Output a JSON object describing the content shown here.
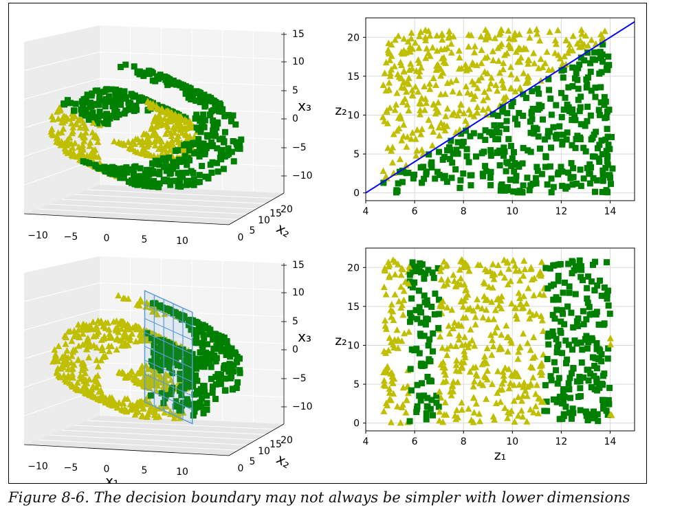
{
  "caption": "Figure 8-6. The decision boundary may not always be simpler with lower dimensions",
  "colors": {
    "square_class": "#008000",
    "triangle_class": "#bfbf00",
    "boundary_line": "#0000ff",
    "plane": "#5b9bd5"
  },
  "chart_data": [
    {
      "type": "scatter",
      "kind": "3d",
      "position": "top-left",
      "markers": [
        "square",
        "triangle"
      ],
      "xticks": [
        "-10",
        "-5",
        "0",
        "5",
        "10"
      ],
      "yticks": [
        "0",
        "5",
        "10",
        "15",
        "20"
      ],
      "zticks": [
        "-10",
        "-5",
        "0",
        "5",
        "10",
        "15"
      ],
      "xlabel": "",
      "ylabel": "x₂",
      "zlabel": "x₃",
      "xlim": [
        -11,
        14
      ],
      "ylim": [
        0,
        21
      ],
      "zlim": [
        -12,
        15
      ],
      "decision_boundary": "none"
    },
    {
      "type": "scatter",
      "position": "top-right",
      "xticks": [
        "4",
        "6",
        "8",
        "10",
        "12",
        "14"
      ],
      "yticks": [
        "0",
        "5",
        "10",
        "15",
        "20"
      ],
      "xlim": [
        4,
        15
      ],
      "ylim": [
        -1,
        22.5
      ],
      "xlabel": "",
      "ylabel": "z₂",
      "grid": true,
      "boundary_line": {
        "x": [
          4,
          15
        ],
        "y": [
          0,
          22
        ]
      },
      "classes": "triangles above line, squares below"
    },
    {
      "type": "scatter",
      "kind": "3d",
      "position": "bottom-left",
      "xticks": [
        "-10",
        "-5",
        "0",
        "5",
        "10"
      ],
      "yticks": [
        "0",
        "5",
        "10",
        "15",
        "20"
      ],
      "zticks": [
        "-10",
        "-5",
        "0",
        "5",
        "10",
        "15"
      ],
      "xlabel": "x₁",
      "ylabel": "x₂",
      "zlabel": "x₃",
      "decision_boundary": "plane at x1 = 5"
    },
    {
      "type": "scatter",
      "position": "bottom-right",
      "xticks": [
        "4",
        "6",
        "8",
        "10",
        "12",
        "14"
      ],
      "yticks": [
        "0",
        "5",
        "10",
        "15",
        "20"
      ],
      "xlim": [
        4,
        15
      ],
      "ylim": [
        -1,
        22.5
      ],
      "xlabel": "z₁",
      "ylabel": "z₂",
      "grid": true,
      "square_bands": [
        [
          5.8,
          7.0
        ],
        [
          11.3,
          14.0
        ]
      ],
      "triangle_bands": [
        [
          4.7,
          5.8
        ],
        [
          7.0,
          11.3
        ],
        [
          14.0,
          14.2
        ]
      ]
    }
  ]
}
